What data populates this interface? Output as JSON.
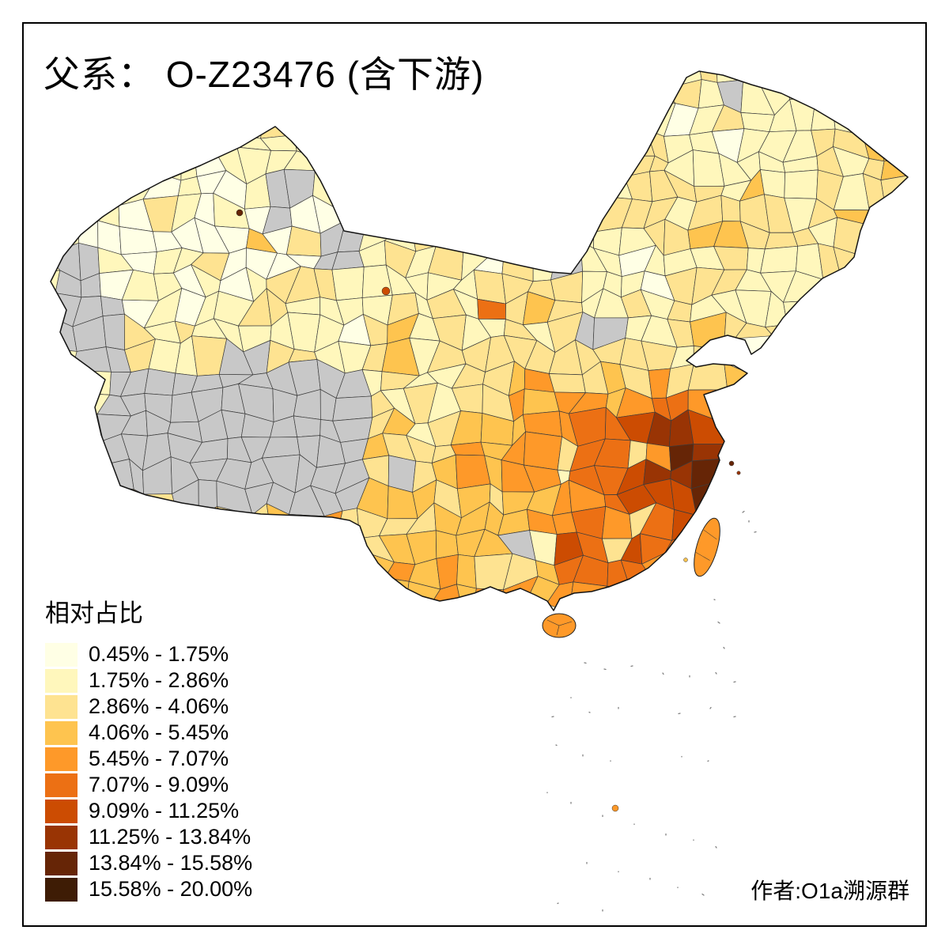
{
  "header": {
    "title": "父系： O-Z23476 (含下游)"
  },
  "legend": {
    "title": "相对占比",
    "classes": [
      {
        "label": "0.45% - 1.75%",
        "color": "#FFFFE5"
      },
      {
        "label": "1.75% - 2.86%",
        "color": "#FFF7BC"
      },
      {
        "label": "2.86% - 4.06%",
        "color": "#FEE391"
      },
      {
        "label": "4.06% - 5.45%",
        "color": "#FEC44F"
      },
      {
        "label": "5.45% - 7.07%",
        "color": "#FE9929"
      },
      {
        "label": "7.07% - 9.09%",
        "color": "#EC7014"
      },
      {
        "label": "9.09% - 11.25%",
        "color": "#CC4C02"
      },
      {
        "label": "11.25% - 13.84%",
        "color": "#993404"
      },
      {
        "label": "13.84% - 15.58%",
        "color": "#662506"
      },
      {
        "label": "15.58% - 20.00%",
        "color": "#3E1C05"
      }
    ]
  },
  "map": {
    "no_data_color": "#C8C8C8",
    "boundary_color": "#141414",
    "background": "#FFFFFF"
  },
  "footer": {
    "author": "作者:O1a溯源群"
  }
}
